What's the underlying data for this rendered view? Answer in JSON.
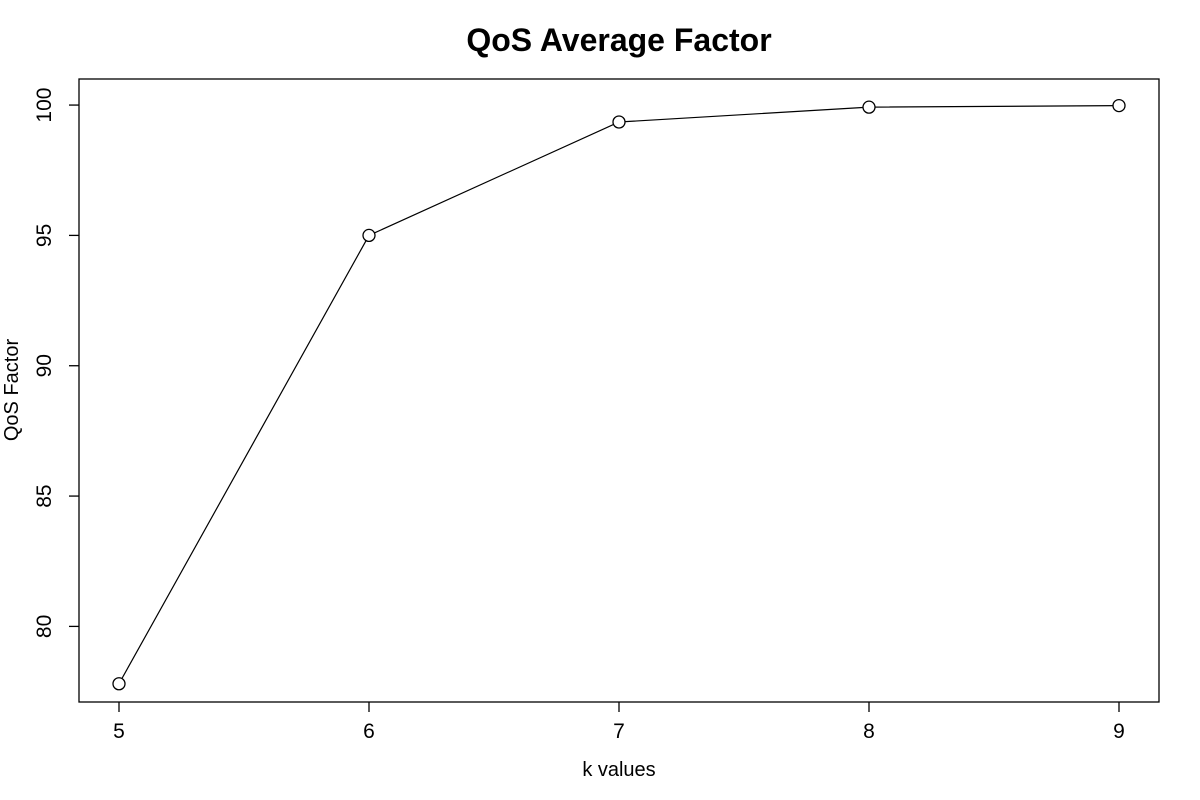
{
  "chart_data": {
    "type": "line",
    "title": "QoS Average Factor",
    "xlabel": "k values",
    "ylabel": "QoS Factor",
    "x": [
      5,
      6,
      7,
      8,
      9
    ],
    "series": [
      {
        "values": [
          77.8,
          95.0,
          99.35,
          99.92,
          99.98
        ]
      }
    ],
    "xticks": [
      "5",
      "6",
      "7",
      "8",
      "9"
    ],
    "yticks": [
      "80",
      "85",
      "90",
      "95",
      "100"
    ],
    "xlim": [
      4.84,
      9.16
    ],
    "ylim": [
      77.1,
      101.0
    ],
    "marker": "open-circle",
    "grid": false,
    "legend": "none",
    "colors": {
      "line": "#000000",
      "marker_fill": "#ffffff"
    }
  }
}
